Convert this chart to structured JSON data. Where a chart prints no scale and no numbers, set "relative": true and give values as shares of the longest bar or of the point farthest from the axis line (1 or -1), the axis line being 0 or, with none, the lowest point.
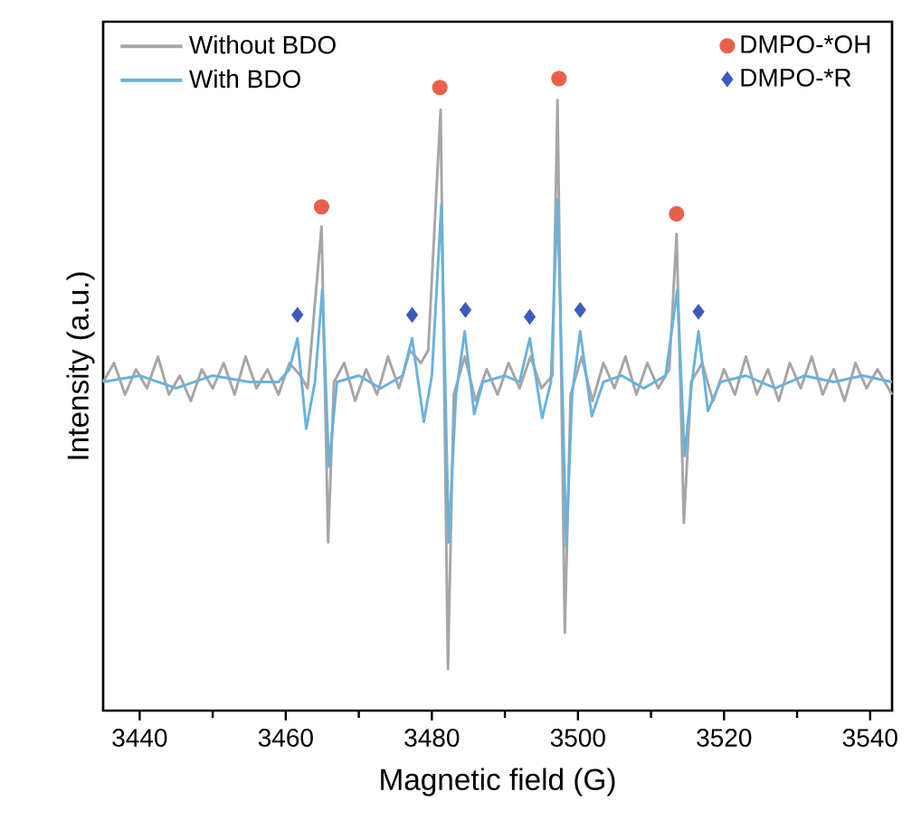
{
  "chart_data": {
    "type": "line",
    "relative": true,
    "xlabel": "Magnetic field (G)",
    "ylabel": "Intensity (a.u.)",
    "xlim": [
      3435,
      3543
    ],
    "xticks": [
      3440,
      3460,
      3480,
      3500,
      3520,
      3540
    ],
    "legend": "top left",
    "series": [
      {
        "name": "Without BDO",
        "color": "#a6a6a6",
        "x": [
          3435,
          3436.5,
          3438,
          3439.5,
          3441,
          3442.5,
          3444,
          3445.5,
          3447,
          3448.5,
          3450,
          3451.5,
          3453,
          3454.5,
          3456,
          3457.5,
          3459,
          3460.5,
          3462,
          3463,
          3464.9,
          3465.8,
          3466.6,
          3468,
          3469.5,
          3471,
          3472.5,
          3474,
          3475.5,
          3477,
          3478.5,
          3479.5,
          3481.2,
          3482.2,
          3483,
          3484.5,
          3486,
          3487.5,
          3489,
          3490.5,
          3492,
          3493.5,
          3495,
          3496.5,
          3497.2,
          3498.2,
          3499,
          3500.5,
          3502,
          3503.5,
          3505,
          3506.5,
          3508,
          3509.5,
          3511,
          3512.5,
          3513.5,
          3514.5,
          3515.5,
          3517,
          3518.5,
          3520,
          3521.5,
          3523,
          3524.5,
          3526,
          3527.5,
          3529,
          3530.5,
          3532,
          3533.5,
          3535,
          3536.5,
          3538,
          3539.5,
          3541,
          3543
        ],
        "values": [
          0.52,
          0.55,
          0.5,
          0.54,
          0.51,
          0.56,
          0.5,
          0.53,
          0.49,
          0.54,
          0.51,
          0.55,
          0.5,
          0.56,
          0.51,
          0.54,
          0.5,
          0.55,
          0.53,
          0.51,
          0.766,
          0.266,
          0.52,
          0.55,
          0.49,
          0.54,
          0.5,
          0.56,
          0.51,
          0.57,
          0.55,
          0.57,
          0.951,
          0.066,
          0.5,
          0.56,
          0.49,
          0.54,
          0.5,
          0.55,
          0.51,
          0.56,
          0.51,
          0.53,
          0.966,
          0.123,
          0.5,
          0.56,
          0.49,
          0.55,
          0.51,
          0.56,
          0.5,
          0.55,
          0.51,
          0.54,
          0.754,
          0.297,
          0.52,
          0.55,
          0.49,
          0.54,
          0.5,
          0.56,
          0.5,
          0.54,
          0.49,
          0.55,
          0.51,
          0.56,
          0.5,
          0.54,
          0.49,
          0.55,
          0.51,
          0.54,
          0.5
        ]
      },
      {
        "name": "With BDO",
        "color": "#6ab2dc",
        "x": [
          3435,
          3440,
          3445,
          3450,
          3455,
          3459,
          3460.5,
          3461.6,
          3462.8,
          3464,
          3465,
          3465.9,
          3467,
          3470,
          3473,
          3476,
          3477.3,
          3478.9,
          3480,
          3481.3,
          3482.3,
          3483.3,
          3484.5,
          3485.8,
          3487,
          3490,
          3492,
          3493.4,
          3495.1,
          3496.3,
          3497.2,
          3498.4,
          3499.2,
          3500.3,
          3501.9,
          3503.5,
          3506,
          3509,
          3512,
          3513.6,
          3514.6,
          3515.6,
          3516.5,
          3517.8,
          3519.5,
          3523,
          3527,
          3531,
          3535,
          3539,
          3543
        ],
        "values": [
          0.52,
          0.53,
          0.51,
          0.53,
          0.52,
          0.52,
          0.54,
          0.589,
          0.446,
          0.52,
          0.666,
          0.386,
          0.52,
          0.53,
          0.51,
          0.53,
          0.589,
          0.457,
          0.53,
          0.8,
          0.266,
          0.5,
          0.6,
          0.469,
          0.52,
          0.53,
          0.52,
          0.589,
          0.463,
          0.52,
          0.809,
          0.26,
          0.5,
          0.6,
          0.466,
          0.52,
          0.53,
          0.51,
          0.53,
          0.666,
          0.403,
          0.52,
          0.6,
          0.474,
          0.52,
          0.53,
          0.51,
          0.53,
          0.52,
          0.53,
          0.52
        ]
      },
      {
        "name": "DMPO-*OH",
        "type": "scatter",
        "marker": "circle",
        "color": "#e8604c",
        "x": [
          3464.9,
          3481.1,
          3497.4,
          3513.5
        ],
        "values": [
          0.797,
          0.986,
          1.0,
          0.786
        ]
      },
      {
        "name": "DMPO-*R",
        "type": "scatter",
        "marker": "diamond",
        "color": "#3d5bbf",
        "x": [
          3461.6,
          3477.3,
          3484.6,
          3493.4,
          3500.3,
          3516.5
        ],
        "values": [
          0.626,
          0.626,
          0.634,
          0.623,
          0.634,
          0.631
        ]
      }
    ]
  }
}
